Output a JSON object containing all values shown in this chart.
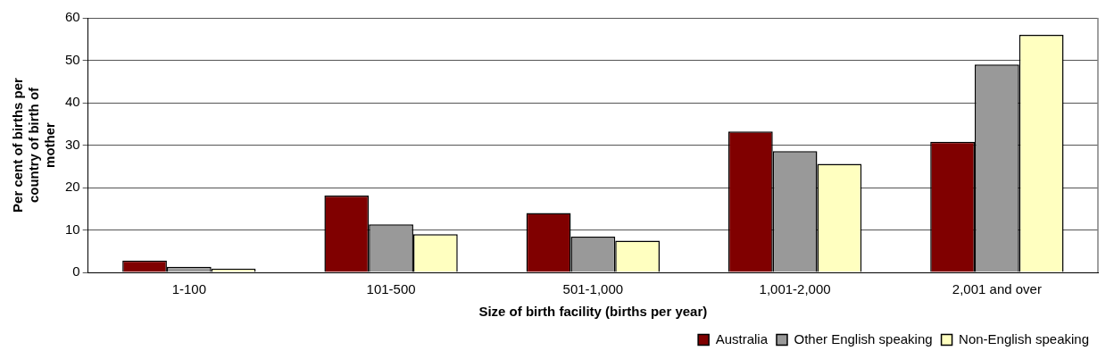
{
  "chart_data": {
    "type": "bar",
    "xlabel": "Size of birth facility (births per year)",
    "ylabel": "Per cent of births per country of birth of mother",
    "categories": [
      "1-100",
      "101-500",
      "501-1,000",
      "1,001-2,000",
      "2,001 and over"
    ],
    "series": [
      {
        "name": "Australia",
        "color": "#800000",
        "values": [
          2.8,
          18.1,
          14.0,
          33.2,
          30.8
        ]
      },
      {
        "name": "Other English speaking",
        "color": "#999999",
        "values": [
          1.3,
          11.3,
          8.4,
          28.6,
          49.0
        ]
      },
      {
        "name": "Non-English speaking",
        "color": "#ffffc0",
        "values": [
          0.9,
          9.0,
          7.5,
          25.6,
          56.0
        ]
      }
    ],
    "ylim": [
      0,
      60
    ],
    "yticks": [
      0,
      10,
      20,
      30,
      40,
      50,
      60
    ],
    "grid": "y",
    "legend": "bottom right"
  }
}
